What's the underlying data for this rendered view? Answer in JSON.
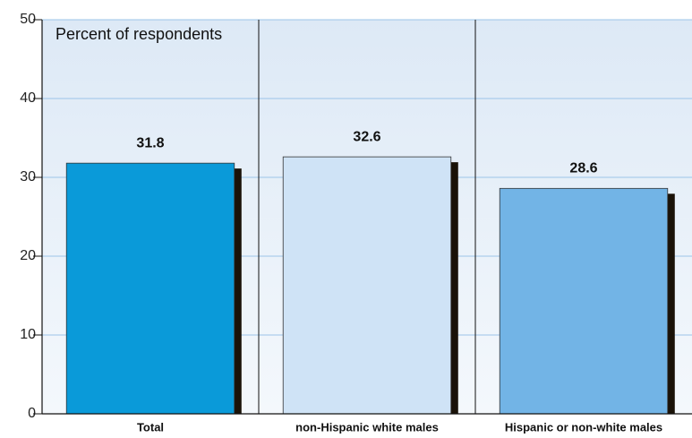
{
  "chart_data": {
    "type": "bar",
    "y_axis_label": "Percent of respondents",
    "categories": [
      "Total",
      "non-Hispanic white males",
      "Hispanic or non-white males"
    ],
    "values": [
      31.8,
      32.6,
      28.6
    ],
    "colors": [
      "#0a9ad9",
      "#cfe3f6",
      "#72b4e6"
    ],
    "ylim": [
      0,
      50
    ],
    "yticks": [
      0,
      10,
      20,
      30,
      40,
      50
    ],
    "grid": true
  }
}
